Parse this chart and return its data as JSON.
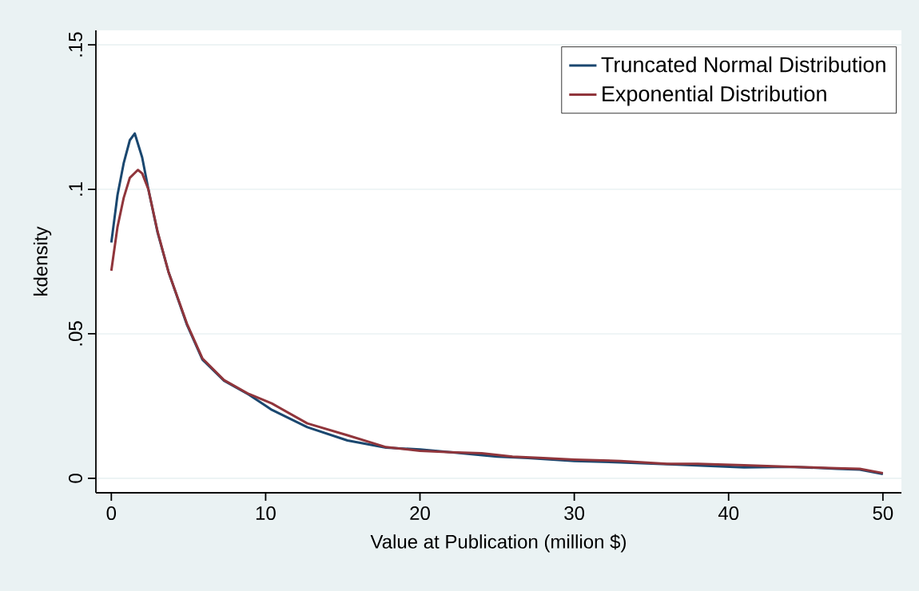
{
  "chart_data": {
    "type": "line",
    "xlabel": "Value at Publication (million $)",
    "ylabel": "kdensity",
    "xlim": [
      -1,
      51.2
    ],
    "ylim": [
      -0.005,
      0.155
    ],
    "xticks": [
      0,
      10,
      20,
      30,
      40,
      50
    ],
    "yticks": [
      {
        "value": 0,
        "label": "0"
      },
      {
        "value": 0.05,
        "label": ".05"
      },
      {
        "value": 0.1,
        "label": ".1"
      },
      {
        "value": 0.15,
        "label": ".15"
      }
    ],
    "grid": "y",
    "legend": "top right",
    "marker": "none",
    "line_style": "solid",
    "series": [
      {
        "name": "Truncated Normal Distribution",
        "color": "#1a476f",
        "x": [
          0,
          0.4,
          0.8,
          1.2,
          1.52,
          2.0,
          2.4,
          3.0,
          3.7,
          4.9,
          5.9,
          7.3,
          8.9,
          10.4,
          12.7,
          15.3,
          17.8,
          20,
          22,
          25,
          27,
          30,
          33,
          37,
          41,
          44,
          47,
          48.5,
          50
        ],
        "values": [
          0.0816,
          0.098,
          0.109,
          0.117,
          0.1193,
          0.111,
          0.1,
          0.085,
          0.0715,
          0.0531,
          0.0411,
          0.0338,
          0.029,
          0.0237,
          0.0177,
          0.0131,
          0.0106,
          0.01,
          0.009,
          0.0075,
          0.007,
          0.006,
          0.0055,
          0.0047,
          0.0038,
          0.004,
          0.0033,
          0.003,
          0.0015
        ]
      },
      {
        "name": "Exponential Distribution",
        "color": "#90353b",
        "x": [
          0,
          0.4,
          0.8,
          1.2,
          1.72,
          2.0,
          2.4,
          3.0,
          3.7,
          4.9,
          5.9,
          7.3,
          8.9,
          10.4,
          12.7,
          15.3,
          17.8,
          20,
          22,
          24,
          26,
          28,
          30,
          33,
          36,
          38,
          41,
          44,
          47,
          48.5,
          50
        ],
        "values": [
          0.0718,
          0.087,
          0.097,
          0.104,
          0.1067,
          0.1055,
          0.1,
          0.0853,
          0.0715,
          0.0535,
          0.0415,
          0.034,
          0.0292,
          0.0259,
          0.019,
          0.0149,
          0.0108,
          0.0095,
          0.009,
          0.0087,
          0.0075,
          0.007,
          0.0065,
          0.006,
          0.005,
          0.005,
          0.0045,
          0.004,
          0.0035,
          0.0033,
          0.0018
        ]
      }
    ]
  }
}
